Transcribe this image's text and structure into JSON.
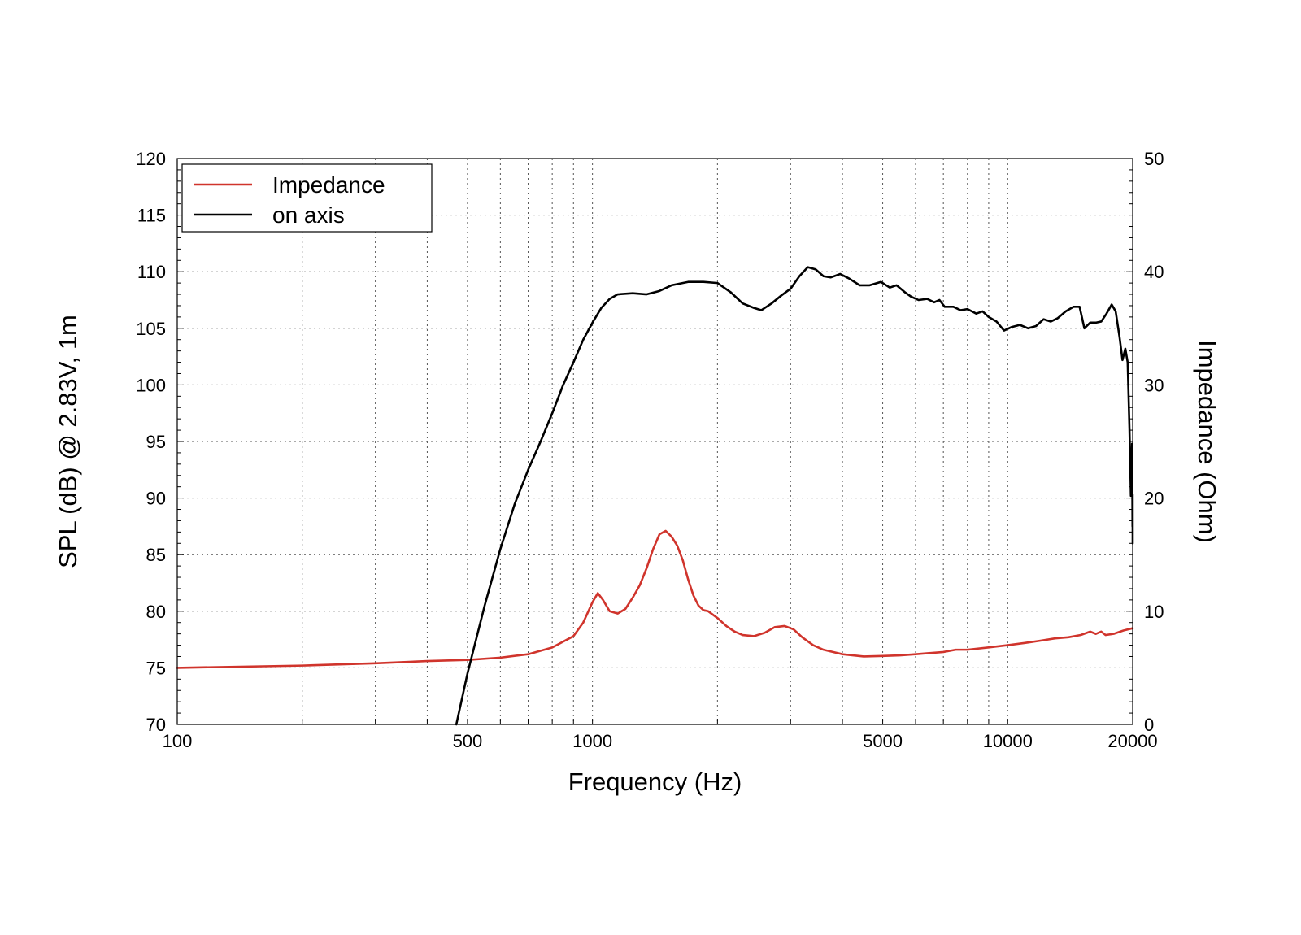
{
  "chart_data": {
    "type": "line",
    "title": "",
    "xlabel": "Frequency (Hz)",
    "ylabel": "SPL (dB) @ 2.83V, 1m",
    "y2label": "Impedance (Ohm)",
    "x_scale": "log",
    "xlim": [
      100,
      20000
    ],
    "ylim": [
      70,
      120
    ],
    "y2lim": [
      0,
      50
    ],
    "grid": true,
    "legend_position": "top-left",
    "x_ticks": [
      {
        "value": 100,
        "label": "100"
      },
      {
        "value": 500,
        "label": "500"
      },
      {
        "value": 1000,
        "label": "1000"
      },
      {
        "value": 5000,
        "label": "5000"
      },
      {
        "value": 10000,
        "label": "10000"
      },
      {
        "value": 20000,
        "label": "20000"
      }
    ],
    "x_gridlines": [
      200,
      300,
      400,
      500,
      600,
      700,
      800,
      900,
      1000,
      2000,
      3000,
      4000,
      5000,
      6000,
      7000,
      8000,
      9000,
      10000
    ],
    "y_ticks": [
      {
        "value": 70,
        "label": "70"
      },
      {
        "value": 75,
        "label": "75"
      },
      {
        "value": 80,
        "label": "80"
      },
      {
        "value": 85,
        "label": "85"
      },
      {
        "value": 90,
        "label": "90"
      },
      {
        "value": 95,
        "label": "95"
      },
      {
        "value": 100,
        "label": "100"
      },
      {
        "value": 105,
        "label": "105"
      },
      {
        "value": 110,
        "label": "110"
      },
      {
        "value": 115,
        "label": "115"
      },
      {
        "value": 120,
        "label": "120"
      }
    ],
    "y2_ticks": [
      {
        "value": 0,
        "label": "0"
      },
      {
        "value": 10,
        "label": "10"
      },
      {
        "value": 20,
        "label": "20"
      },
      {
        "value": 30,
        "label": "30"
      },
      {
        "value": 40,
        "label": "40"
      },
      {
        "value": 50,
        "label": "50"
      }
    ],
    "series": [
      {
        "name": "Impedance",
        "axis": "right",
        "color": "#d0342c",
        "points": [
          [
            100,
            5.0
          ],
          [
            200,
            5.2
          ],
          [
            300,
            5.4
          ],
          [
            400,
            5.6
          ],
          [
            500,
            5.7
          ],
          [
            600,
            5.9
          ],
          [
            700,
            6.2
          ],
          [
            800,
            6.8
          ],
          [
            900,
            7.8
          ],
          [
            950,
            9.0
          ],
          [
            1000,
            10.8
          ],
          [
            1030,
            11.6
          ],
          [
            1060,
            11.0
          ],
          [
            1100,
            10.0
          ],
          [
            1150,
            9.8
          ],
          [
            1200,
            10.2
          ],
          [
            1250,
            11.2
          ],
          [
            1300,
            12.3
          ],
          [
            1350,
            13.8
          ],
          [
            1400,
            15.5
          ],
          [
            1450,
            16.8
          ],
          [
            1500,
            17.1
          ],
          [
            1550,
            16.6
          ],
          [
            1600,
            15.8
          ],
          [
            1650,
            14.5
          ],
          [
            1700,
            12.8
          ],
          [
            1750,
            11.4
          ],
          [
            1800,
            10.5
          ],
          [
            1850,
            10.1
          ],
          [
            1900,
            10.0
          ],
          [
            2000,
            9.4
          ],
          [
            2100,
            8.7
          ],
          [
            2200,
            8.2
          ],
          [
            2300,
            7.9
          ],
          [
            2450,
            7.8
          ],
          [
            2600,
            8.1
          ],
          [
            2750,
            8.6
          ],
          [
            2900,
            8.7
          ],
          [
            3050,
            8.4
          ],
          [
            3200,
            7.7
          ],
          [
            3400,
            7.0
          ],
          [
            3600,
            6.6
          ],
          [
            4000,
            6.2
          ],
          [
            4500,
            6.0
          ],
          [
            5000,
            6.05
          ],
          [
            5500,
            6.1
          ],
          [
            6000,
            6.2
          ],
          [
            7000,
            6.4
          ],
          [
            7500,
            6.6
          ],
          [
            8000,
            6.6
          ],
          [
            9000,
            6.8
          ],
          [
            10000,
            7.0
          ],
          [
            11000,
            7.2
          ],
          [
            12000,
            7.4
          ],
          [
            13000,
            7.6
          ],
          [
            14000,
            7.7
          ],
          [
            15000,
            7.9
          ],
          [
            15800,
            8.2
          ],
          [
            16300,
            8.0
          ],
          [
            16800,
            8.2
          ],
          [
            17200,
            7.9
          ],
          [
            18000,
            8.0
          ],
          [
            19000,
            8.3
          ],
          [
            20000,
            8.5
          ]
        ]
      },
      {
        "name": "on axis",
        "axis": "left",
        "color": "#000000",
        "points": [
          [
            470,
            70.0
          ],
          [
            500,
            74.5
          ],
          [
            550,
            80.5
          ],
          [
            600,
            85.5
          ],
          [
            650,
            89.5
          ],
          [
            700,
            92.5
          ],
          [
            750,
            95.0
          ],
          [
            800,
            97.5
          ],
          [
            850,
            100.0
          ],
          [
            900,
            102.0
          ],
          [
            950,
            104.0
          ],
          [
            1000,
            105.5
          ],
          [
            1050,
            106.8
          ],
          [
            1100,
            107.6
          ],
          [
            1150,
            108.0
          ],
          [
            1250,
            108.1
          ],
          [
            1350,
            108.0
          ],
          [
            1450,
            108.3
          ],
          [
            1550,
            108.8
          ],
          [
            1700,
            109.1
          ],
          [
            1850,
            109.1
          ],
          [
            2000,
            109.0
          ],
          [
            2150,
            108.2
          ],
          [
            2300,
            107.2
          ],
          [
            2450,
            106.8
          ],
          [
            2550,
            106.6
          ],
          [
            2700,
            107.2
          ],
          [
            2850,
            107.9
          ],
          [
            3000,
            108.5
          ],
          [
            3150,
            109.6
          ],
          [
            3300,
            110.4
          ],
          [
            3450,
            110.2
          ],
          [
            3600,
            109.6
          ],
          [
            3750,
            109.5
          ],
          [
            3950,
            109.8
          ],
          [
            4150,
            109.4
          ],
          [
            4400,
            108.8
          ],
          [
            4650,
            108.8
          ],
          [
            4950,
            109.1
          ],
          [
            5200,
            108.6
          ],
          [
            5400,
            108.8
          ],
          [
            5650,
            108.2
          ],
          [
            5850,
            107.8
          ],
          [
            6100,
            107.5
          ],
          [
            6400,
            107.6
          ],
          [
            6650,
            107.3
          ],
          [
            6850,
            107.5
          ],
          [
            7050,
            106.9
          ],
          [
            7400,
            106.9
          ],
          [
            7700,
            106.6
          ],
          [
            8000,
            106.7
          ],
          [
            8400,
            106.3
          ],
          [
            8700,
            106.5
          ],
          [
            9000,
            106.0
          ],
          [
            9400,
            105.6
          ],
          [
            9800,
            104.8
          ],
          [
            10200,
            105.1
          ],
          [
            10700,
            105.3
          ],
          [
            11200,
            105.0
          ],
          [
            11700,
            105.2
          ],
          [
            12200,
            105.8
          ],
          [
            12700,
            105.6
          ],
          [
            13200,
            105.9
          ],
          [
            13800,
            106.5
          ],
          [
            14400,
            106.9
          ],
          [
            14900,
            106.9
          ],
          [
            15300,
            105.0
          ],
          [
            15800,
            105.5
          ],
          [
            16300,
            105.5
          ],
          [
            16800,
            105.6
          ],
          [
            17300,
            106.3
          ],
          [
            17800,
            107.1
          ],
          [
            18200,
            106.5
          ],
          [
            18600,
            104.2
          ],
          [
            18900,
            102.2
          ],
          [
            19200,
            103.2
          ],
          [
            19450,
            102.0
          ],
          [
            19650,
            96.0
          ],
          [
            19800,
            90.2
          ],
          [
            19880,
            92.0
          ],
          [
            19930,
            94.8
          ],
          [
            19960,
            91.0
          ],
          [
            19980,
            87.5
          ],
          [
            19990,
            88.8
          ],
          [
            19995,
            90.3
          ],
          [
            20000,
            86.0
          ]
        ]
      }
    ]
  },
  "legend": {
    "items": [
      {
        "label": "Impedance",
        "color": "#d0342c"
      },
      {
        "label": "on axis",
        "color": "#000000"
      }
    ]
  }
}
